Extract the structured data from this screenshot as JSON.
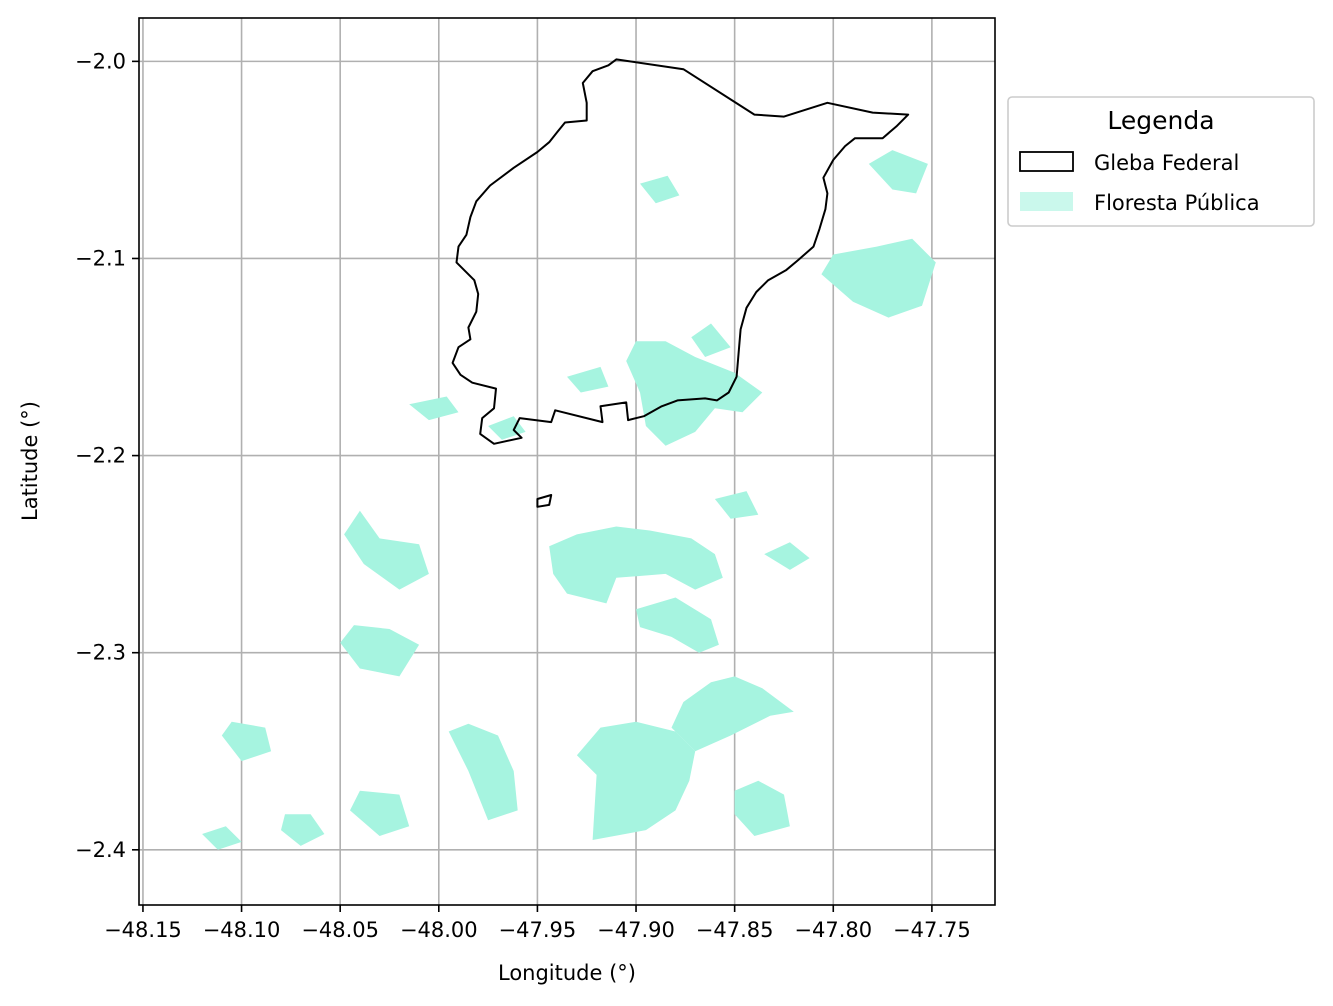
{
  "chart_data": {
    "type": "map",
    "xlabel": "Longitude (°)",
    "ylabel": "Latitude (°)",
    "xlim": [
      -48.152,
      -47.718
    ],
    "ylim": [
      -2.428,
      -1.978
    ],
    "x_ticks": [
      "−48.15",
      "−48.10",
      "−48.05",
      "−48.00",
      "−47.95",
      "−47.90",
      "−47.85",
      "−47.80",
      "−47.75"
    ],
    "x_tick_values": [
      -48.15,
      -48.1,
      -48.05,
      -48.0,
      -47.95,
      -47.9,
      -47.85,
      -47.8,
      -47.75
    ],
    "y_ticks": [
      "−2.0",
      "−2.1",
      "−2.2",
      "−2.3",
      "−2.4"
    ],
    "y_tick_values": [
      -2.0,
      -2.1,
      -2.2,
      -2.3,
      -2.4
    ],
    "grid": true,
    "legend": {
      "title": "Legenda",
      "placement": "outside-right",
      "entries": [
        {
          "label": "Gleba Federal",
          "type": "outline",
          "color": "#000000"
        },
        {
          "label": "Floresta Pública",
          "type": "fill",
          "color": "#a6f4e0"
        }
      ]
    },
    "gleba_color": "#000000",
    "forest_color": "#a6f4e0",
    "gleba_federal": [
      [
        [
          -47.91,
          -1.999
        ],
        [
          -47.876,
          -2.004
        ],
        [
          -47.84,
          -2.027
        ],
        [
          -47.825,
          -2.028
        ],
        [
          -47.803,
          -2.021
        ],
        [
          -47.78,
          -2.026
        ],
        [
          -47.762,
          -2.027
        ],
        [
          -47.768,
          -2.033
        ],
        [
          -47.775,
          -2.039
        ],
        [
          -47.789,
          -2.039
        ],
        [
          -47.794,
          -2.043
        ],
        [
          -47.8,
          -2.05
        ],
        [
          -47.805,
          -2.059
        ],
        [
          -47.803,
          -2.067
        ],
        [
          -47.804,
          -2.075
        ],
        [
          -47.807,
          -2.085
        ],
        [
          -47.81,
          -2.094
        ],
        [
          -47.818,
          -2.101
        ],
        [
          -47.824,
          -2.106
        ],
        [
          -47.833,
          -2.111
        ],
        [
          -47.839,
          -2.117
        ],
        [
          -47.844,
          -2.125
        ],
        [
          -47.847,
          -2.136
        ],
        [
          -47.849,
          -2.16
        ],
        [
          -47.853,
          -2.168
        ],
        [
          -47.859,
          -2.172
        ],
        [
          -47.865,
          -2.171
        ],
        [
          -47.879,
          -2.172
        ],
        [
          -47.887,
          -2.175
        ],
        [
          -47.896,
          -2.18
        ],
        [
          -47.904,
          -2.182
        ],
        [
          -47.905,
          -2.173
        ],
        [
          -47.918,
          -2.175
        ],
        [
          -47.917,
          -2.183
        ],
        [
          -47.941,
          -2.177
        ],
        [
          -47.943,
          -2.183
        ],
        [
          -47.959,
          -2.181
        ],
        [
          -47.962,
          -2.187
        ],
        [
          -47.958,
          -2.191
        ],
        [
          -47.972,
          -2.194
        ],
        [
          -47.979,
          -2.189
        ],
        [
          -47.978,
          -2.181
        ],
        [
          -47.972,
          -2.176
        ],
        [
          -47.971,
          -2.166
        ],
        [
          -47.983,
          -2.163
        ],
        [
          -47.989,
          -2.159
        ],
        [
          -47.993,
          -2.153
        ],
        [
          -47.99,
          -2.145
        ],
        [
          -47.984,
          -2.141
        ],
        [
          -47.985,
          -2.135
        ],
        [
          -47.981,
          -2.127
        ],
        [
          -47.98,
          -2.118
        ],
        [
          -47.982,
          -2.111
        ],
        [
          -47.986,
          -2.107
        ],
        [
          -47.991,
          -2.102
        ],
        [
          -47.99,
          -2.094
        ],
        [
          -47.986,
          -2.088
        ],
        [
          -47.984,
          -2.079
        ],
        [
          -47.981,
          -2.071
        ],
        [
          -47.974,
          -2.063
        ],
        [
          -47.962,
          -2.054
        ],
        [
          -47.95,
          -2.046
        ],
        [
          -47.944,
          -2.041
        ],
        [
          -47.94,
          -2.036
        ],
        [
          -47.936,
          -2.031
        ],
        [
          -47.925,
          -2.03
        ],
        [
          -47.925,
          -2.021
        ],
        [
          -47.927,
          -2.011
        ],
        [
          -47.922,
          -2.005
        ],
        [
          -47.914,
          -2.002
        ],
        [
          -47.91,
          -1.999
        ]
      ],
      [
        [
          -47.95,
          -2.222
        ],
        [
          -47.943,
          -2.22
        ],
        [
          -47.944,
          -2.225
        ],
        [
          -47.95,
          -2.226
        ],
        [
          -47.95,
          -2.222
        ]
      ]
    ],
    "floresta_publica": [
      [
        [
          -47.935,
          -2.27
        ],
        [
          -47.915,
          -2.275
        ],
        [
          -47.91,
          -2.262
        ],
        [
          -47.885,
          -2.26
        ],
        [
          -47.87,
          -2.268
        ],
        [
          -47.856,
          -2.262
        ],
        [
          -47.86,
          -2.25
        ],
        [
          -47.872,
          -2.242
        ],
        [
          -47.893,
          -2.238
        ],
        [
          -47.91,
          -2.236
        ],
        [
          -47.93,
          -2.24
        ],
        [
          -47.944,
          -2.246
        ],
        [
          -47.942,
          -2.26
        ],
        [
          -47.935,
          -2.27
        ]
      ],
      [
        [
          -47.9,
          -2.278
        ],
        [
          -47.88,
          -2.272
        ],
        [
          -47.862,
          -2.283
        ],
        [
          -47.858,
          -2.296
        ],
        [
          -47.868,
          -2.3
        ],
        [
          -47.882,
          -2.292
        ],
        [
          -47.898,
          -2.287
        ],
        [
          -47.9,
          -2.278
        ]
      ],
      [
        [
          -47.93,
          -2.352
        ],
        [
          -47.92,
          -2.362
        ],
        [
          -47.922,
          -2.395
        ],
        [
          -47.895,
          -2.39
        ],
        [
          -47.88,
          -2.38
        ],
        [
          -47.873,
          -2.365
        ],
        [
          -47.87,
          -2.35
        ],
        [
          -47.88,
          -2.34
        ],
        [
          -47.9,
          -2.335
        ],
        [
          -47.918,
          -2.338
        ],
        [
          -47.93,
          -2.352
        ]
      ],
      [
        [
          -47.87,
          -2.35
        ],
        [
          -47.852,
          -2.342
        ],
        [
          -47.832,
          -2.332
        ],
        [
          -47.82,
          -2.33
        ],
        [
          -47.836,
          -2.318
        ],
        [
          -47.85,
          -2.312
        ],
        [
          -47.862,
          -2.315
        ],
        [
          -47.876,
          -2.325
        ],
        [
          -47.882,
          -2.338
        ],
        [
          -47.87,
          -2.35
        ]
      ],
      [
        [
          -47.85,
          -2.382
        ],
        [
          -47.84,
          -2.393
        ],
        [
          -47.822,
          -2.388
        ],
        [
          -47.825,
          -2.372
        ],
        [
          -47.838,
          -2.365
        ],
        [
          -47.85,
          -2.37
        ],
        [
          -47.85,
          -2.382
        ]
      ],
      [
        [
          -47.905,
          -2.152
        ],
        [
          -47.898,
          -2.168
        ],
        [
          -47.895,
          -2.185
        ],
        [
          -47.885,
          -2.195
        ],
        [
          -47.87,
          -2.188
        ],
        [
          -47.86,
          -2.176
        ],
        [
          -47.846,
          -2.178
        ],
        [
          -47.836,
          -2.168
        ],
        [
          -47.85,
          -2.158
        ],
        [
          -47.87,
          -2.15
        ],
        [
          -47.885,
          -2.142
        ],
        [
          -47.9,
          -2.142
        ],
        [
          -47.905,
          -2.152
        ]
      ],
      [
        [
          -47.862,
          -2.133
        ],
        [
          -47.852,
          -2.145
        ],
        [
          -47.865,
          -2.15
        ],
        [
          -47.872,
          -2.14
        ],
        [
          -47.862,
          -2.133
        ]
      ],
      [
        [
          -47.748,
          -2.102
        ],
        [
          -47.755,
          -2.124
        ],
        [
          -47.772,
          -2.13
        ],
        [
          -47.79,
          -2.122
        ],
        [
          -47.806,
          -2.108
        ],
        [
          -47.8,
          -2.098
        ],
        [
          -47.778,
          -2.094
        ],
        [
          -47.76,
          -2.09
        ],
        [
          -47.748,
          -2.102
        ]
      ],
      [
        [
          -47.752,
          -2.052
        ],
        [
          -47.758,
          -2.067
        ],
        [
          -47.77,
          -2.065
        ],
        [
          -47.782,
          -2.052
        ],
        [
          -47.77,
          -2.045
        ],
        [
          -47.752,
          -2.052
        ]
      ],
      [
        [
          -48.04,
          -2.228
        ],
        [
          -48.03,
          -2.242
        ],
        [
          -48.01,
          -2.245
        ],
        [
          -48.005,
          -2.26
        ],
        [
          -48.02,
          -2.268
        ],
        [
          -48.038,
          -2.255
        ],
        [
          -48.048,
          -2.24
        ],
        [
          -48.04,
          -2.228
        ]
      ],
      [
        [
          -48.05,
          -2.295
        ],
        [
          -48.04,
          -2.308
        ],
        [
          -48.02,
          -2.312
        ],
        [
          -48.01,
          -2.296
        ],
        [
          -48.025,
          -2.288
        ],
        [
          -48.043,
          -2.286
        ],
        [
          -48.05,
          -2.295
        ]
      ],
      [
        [
          -47.995,
          -2.34
        ],
        [
          -47.985,
          -2.36
        ],
        [
          -47.975,
          -2.385
        ],
        [
          -47.96,
          -2.38
        ],
        [
          -47.962,
          -2.36
        ],
        [
          -47.97,
          -2.342
        ],
        [
          -47.985,
          -2.336
        ],
        [
          -47.995,
          -2.34
        ]
      ],
      [
        [
          -48.045,
          -2.38
        ],
        [
          -48.03,
          -2.393
        ],
        [
          -48.015,
          -2.388
        ],
        [
          -48.02,
          -2.372
        ],
        [
          -48.04,
          -2.37
        ],
        [
          -48.045,
          -2.38
        ]
      ],
      [
        [
          -48.11,
          -2.342
        ],
        [
          -48.1,
          -2.355
        ],
        [
          -48.085,
          -2.35
        ],
        [
          -48.088,
          -2.338
        ],
        [
          -48.105,
          -2.335
        ],
        [
          -48.11,
          -2.342
        ]
      ],
      [
        [
          -48.08,
          -2.39
        ],
        [
          -48.07,
          -2.398
        ],
        [
          -48.058,
          -2.392
        ],
        [
          -48.065,
          -2.382
        ],
        [
          -48.078,
          -2.382
        ],
        [
          -48.08,
          -2.39
        ]
      ],
      [
        [
          -48.12,
          -2.392
        ],
        [
          -48.112,
          -2.4
        ],
        [
          -48.1,
          -2.396
        ],
        [
          -48.108,
          -2.388
        ],
        [
          -48.12,
          -2.392
        ]
      ],
      [
        [
          -47.935,
          -2.16
        ],
        [
          -47.928,
          -2.168
        ],
        [
          -47.914,
          -2.165
        ],
        [
          -47.918,
          -2.155
        ],
        [
          -47.935,
          -2.16
        ]
      ],
      [
        [
          -47.975,
          -2.185
        ],
        [
          -47.968,
          -2.192
        ],
        [
          -47.956,
          -2.188
        ],
        [
          -47.962,
          -2.18
        ],
        [
          -47.975,
          -2.185
        ]
      ],
      [
        [
          -48.015,
          -2.174
        ],
        [
          -48.005,
          -2.182
        ],
        [
          -47.99,
          -2.178
        ],
        [
          -47.996,
          -2.17
        ],
        [
          -48.015,
          -2.174
        ]
      ],
      [
        [
          -47.86,
          -2.222
        ],
        [
          -47.852,
          -2.232
        ],
        [
          -47.838,
          -2.23
        ],
        [
          -47.844,
          -2.218
        ],
        [
          -47.86,
          -2.222
        ]
      ],
      [
        [
          -47.898,
          -2.062
        ],
        [
          -47.89,
          -2.072
        ],
        [
          -47.878,
          -2.068
        ],
        [
          -47.884,
          -2.058
        ],
        [
          -47.898,
          -2.062
        ]
      ],
      [
        [
          -47.835,
          -2.25
        ],
        [
          -47.822,
          -2.258
        ],
        [
          -47.812,
          -2.252
        ],
        [
          -47.822,
          -2.244
        ],
        [
          -47.835,
          -2.25
        ]
      ]
    ]
  }
}
